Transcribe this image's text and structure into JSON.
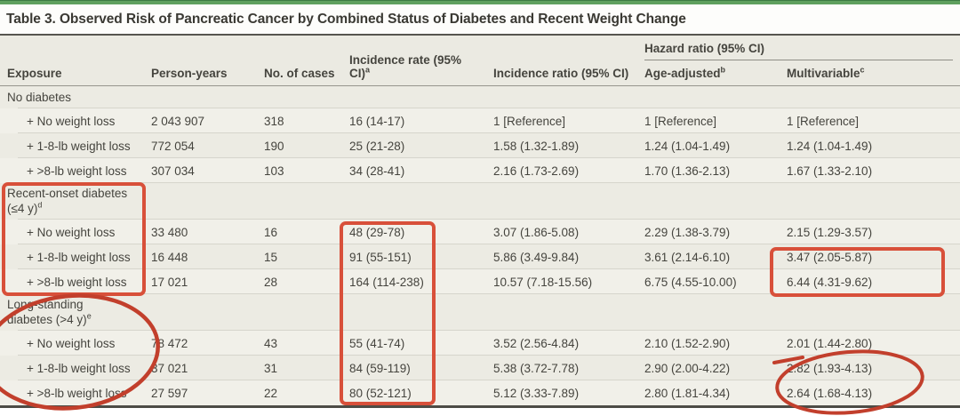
{
  "title": "Table 3. Observed Risk of Pancreatic Cancer by Combined Status of Diabetes and Recent Weight Change",
  "header": {
    "exposure": "Exposure",
    "person_years": "Person-years",
    "no_of_cases": "No. of cases",
    "incidence_rate": "Incidence rate (95% CI)",
    "incidence_rate_sup": "a",
    "incidence_ratio": "Incidence ratio (95% CI)",
    "hazard_group": "Hazard ratio (95% CI)",
    "age_adjusted": "Age-adjusted",
    "age_adjusted_sup": "b",
    "multivariable": "Multivariable",
    "multivariable_sup": "c"
  },
  "rows": [
    {
      "type": "section",
      "exposure": "No diabetes",
      "sup": ""
    },
    {
      "type": "data",
      "exposure": "+ No weight loss",
      "py": "2 043 907",
      "cases": "318",
      "rate": "16 (14-17)",
      "iratio": "1 [Reference]",
      "age": "1 [Reference]",
      "multi": "1 [Reference]"
    },
    {
      "type": "data",
      "exposure": "+ 1-8-lb weight loss",
      "py": "772 054",
      "cases": "190",
      "rate": "25 (21-28)",
      "iratio": "1.58 (1.32-1.89)",
      "age": "1.24 (1.04-1.49)",
      "multi": "1.24 (1.04-1.49)"
    },
    {
      "type": "data",
      "exposure": "+ >8-lb weight loss",
      "py": "307 034",
      "cases": "103",
      "rate": "34 (28-41)",
      "iratio": "2.16 (1.73-2.69)",
      "age": "1.70 (1.36-2.13)",
      "multi": "1.67 (1.33-2.10)"
    },
    {
      "type": "section2",
      "line1": "Recent-onset diabetes",
      "line2": "(≤4 y)",
      "sup": "d"
    },
    {
      "type": "data",
      "exposure": "+ No weight loss",
      "py": "33 480",
      "cases": "16",
      "rate": "48 (29-78)",
      "iratio": "3.07 (1.86-5.08)",
      "age": "2.29 (1.38-3.79)",
      "multi": "2.15 (1.29-3.57)"
    },
    {
      "type": "data",
      "exposure": "+ 1-8-lb weight loss",
      "py": "16 448",
      "cases": "15",
      "rate": "91 (55-151)",
      "iratio": "5.86 (3.49-9.84)",
      "age": "3.61 (2.14-6.10)",
      "multi": "3.47 (2.05-5.87)"
    },
    {
      "type": "data",
      "exposure": "+ >8-lb weight loss",
      "py": "17 021",
      "cases": "28",
      "rate": "164 (114-238)",
      "iratio": "10.57 (7.18-15.56)",
      "age": "6.75 (4.55-10.00)",
      "multi": "6.44 (4.31-9.62)"
    },
    {
      "type": "section2",
      "line1": "Long-standing",
      "line2": "diabetes (>4 y)",
      "sup": "e"
    },
    {
      "type": "data",
      "exposure": "+ No weight loss",
      "py": "78 472",
      "cases": "43",
      "rate": "55 (41-74)",
      "iratio": "3.52 (2.56-4.84)",
      "age": "2.10 (1.52-2.90)",
      "multi": "2.01 (1.44-2.80)"
    },
    {
      "type": "data",
      "exposure": "+ 1-8-lb weight loss",
      "py": "37 021",
      "cases": "31",
      "rate": "84 (59-119)",
      "iratio": "5.38 (3.72-7.78)",
      "age": "2.90 (2.00-4.22)",
      "multi": "2.82 (1.93-4.13)"
    },
    {
      "type": "data",
      "exposure": "+ >8-lb weight loss",
      "py": "27 597",
      "cases": "22",
      "rate": "80 (52-121)",
      "iratio": "5.12 (3.33-7.89)",
      "age": "2.80 (1.81-4.34)",
      "multi": "2.64 (1.68-4.13)"
    }
  ],
  "annotations": {
    "box_color": "#d8503a",
    "circle_color": "#c23f2c",
    "highlights": [
      "recent-onset-diabetes-exposure-box",
      "diabetes-incidence-rate-box",
      "recent-onset-multivariable-box",
      "long-standing-diabetes-circle",
      "long-standing-multivariable-circle"
    ]
  },
  "accent": {
    "top_bar_color": "#5fa05e"
  }
}
